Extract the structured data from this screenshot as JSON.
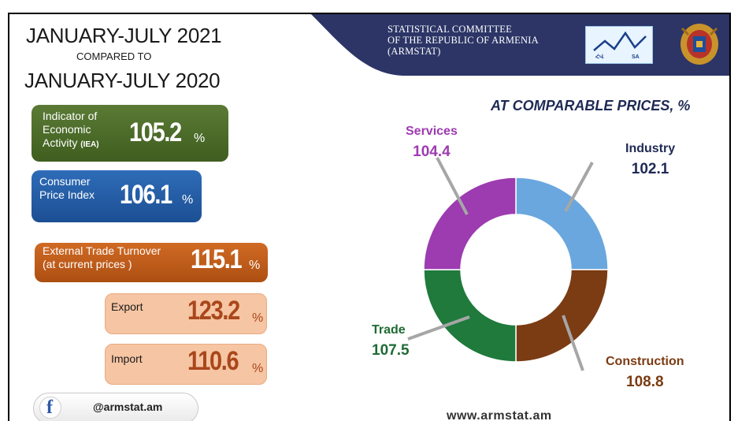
{
  "header": {
    "title_line1": "JANUARY-JULY 2021",
    "title_line2": "COMPARED TO",
    "title_line3": "JANUARY-JULY  2020",
    "committee_line1": "STATISTICAL COMMITTEE",
    "committee_line2": "OF THE REPUBLIC OF ARMENIA",
    "committee_line3": "(ARMSTAT)",
    "logo_text_left": "ՀՎ",
    "logo_text_right": "SA",
    "band_color": "#2c3566"
  },
  "indicators": [
    {
      "label_line1": "Indicator of",
      "label_line2": "Economic",
      "label_line3": "Activity",
      "label_suffix": "(IEA)",
      "value": "105.2",
      "unit": "%",
      "color": "#4b6b2a"
    },
    {
      "label_line1": "Consumer",
      "label_line2": "Price Index",
      "value": "106.1",
      "unit": "%",
      "color": "#245fa8"
    },
    {
      "label_line1": "External Trade Turnover",
      "label_line2": "(at current prices )",
      "value": "115.1",
      "unit": "%",
      "color": "#bf5a1b"
    },
    {
      "label": "Export",
      "value": "123.2",
      "unit": "%",
      "color": "#f6c5a3"
    },
    {
      "label": "Import",
      "value": "110.6",
      "unit": "%",
      "color": "#f6c5a3"
    }
  ],
  "social": {
    "icon": "facebook-icon",
    "glyph": "f",
    "handle": "@armstat.am"
  },
  "website": "www.armstat.am",
  "chart_data": {
    "type": "pie",
    "title": "AT COMPARABLE PRICES, %",
    "donut": true,
    "slices": [
      {
        "name": "Industry",
        "value": 102.1,
        "color": "#6aa7de"
      },
      {
        "name": "Construction",
        "value": 108.8,
        "color": "#7b3b13"
      },
      {
        "name": "Trade",
        "value": 107.5,
        "color": "#1f7a3c"
      },
      {
        "name": "Services",
        "value": 104.4,
        "color": "#9d3bb0"
      }
    ],
    "label_colors": {
      "Industry": "#1f2a55",
      "Construction": "#7b3b13",
      "Trade": "#1f6b34",
      "Services": "#9d3bb0"
    }
  }
}
